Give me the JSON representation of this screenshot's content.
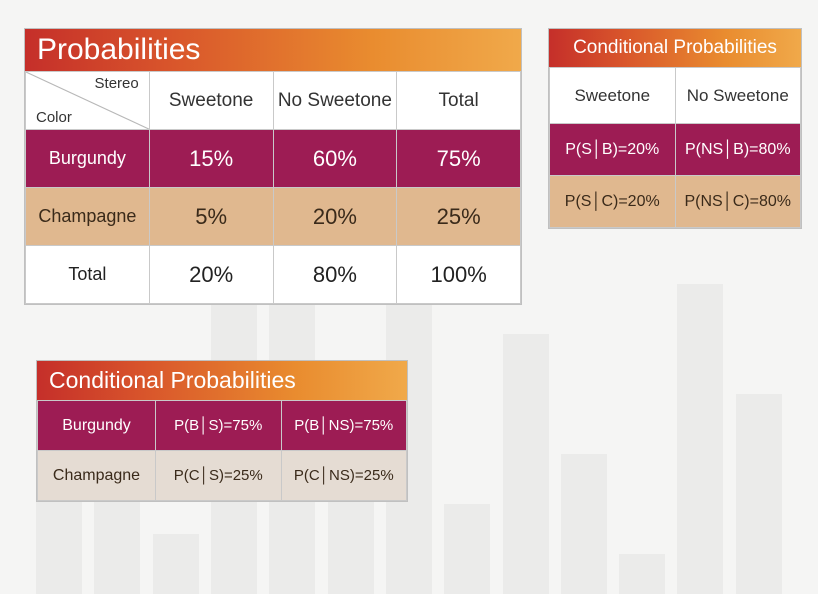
{
  "main": {
    "title": "Probabilities",
    "corner_top": "Stereo",
    "corner_bottom": "Color",
    "col_headers": [
      "Sweetone",
      "No Sweetone",
      "Total"
    ],
    "rows": [
      {
        "label": "Burgundy",
        "cells": [
          "15%",
          "60%",
          "75%"
        ],
        "style": "burgundy"
      },
      {
        "label": "Champagne",
        "cells": [
          "5%",
          "20%",
          "25%"
        ],
        "style": "champagne"
      },
      {
        "label": "Total",
        "cells": [
          "20%",
          "80%",
          "100%"
        ],
        "style": "total"
      }
    ]
  },
  "right": {
    "title": "Conditional Probabilities",
    "col_headers": [
      "Sweetone",
      "No Sweetone"
    ],
    "rows": [
      {
        "cells": [
          "P(S│B)=20%",
          "P(NS│B)=80%"
        ],
        "style": "burgundy"
      },
      {
        "cells": [
          "P(S│C)=20%",
          "P(NS│C)=80%"
        ],
        "style": "champagne"
      }
    ]
  },
  "bottom": {
    "title": "Conditional Probabilities",
    "rows": [
      {
        "label": "Burgundy",
        "cells": [
          "P(B│S)=75%",
          "P(B│NS)=75%"
        ],
        "style": "burgundy"
      },
      {
        "label": "Champagne",
        "cells": [
          "P(C│S)=25%",
          "P(C│NS)=25%"
        ],
        "style": "champagne"
      }
    ]
  },
  "colors": {
    "burgundy_bg": "#9d1c54",
    "champagne_bg": "#e0b88f",
    "champagne_alt_bg": "#e5dcd3",
    "header_gradient_from": "#c52f2a",
    "header_gradient_to": "#f0a94a",
    "page_bg": "#f5f5f4",
    "bars_bg": "#ebebea"
  },
  "bg_bar_heights": [
    110,
    180,
    60,
    340,
    290,
    160,
    300,
    90,
    260,
    140,
    40,
    310,
    200
  ]
}
